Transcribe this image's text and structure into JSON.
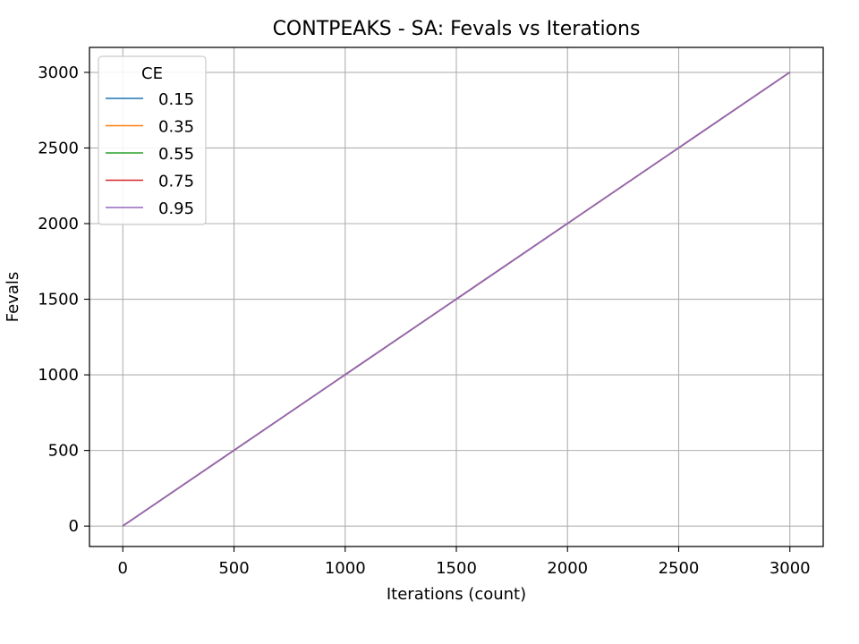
{
  "chart_data": {
    "type": "line",
    "title": "CONTPEAKS - SA: Fevals vs Iterations",
    "xlabel": "Iterations (count)",
    "ylabel": "Fevals",
    "xlim": [
      -150,
      3150
    ],
    "ylim": [
      -135,
      3165
    ],
    "xticks": [
      0,
      500,
      1000,
      1500,
      2000,
      2500,
      3000
    ],
    "yticks": [
      0,
      500,
      1000,
      1500,
      2000,
      2500,
      3000
    ],
    "grid": true,
    "legend": {
      "title": "CE",
      "placement": "top-left"
    },
    "series": [
      {
        "name": "0.15",
        "color": "#1f77b4",
        "x": [
          0,
          3000
        ],
        "y": [
          1,
          3001
        ]
      },
      {
        "name": "0.35",
        "color": "#ff7f0e",
        "x": [
          0,
          3000
        ],
        "y": [
          1,
          3001
        ]
      },
      {
        "name": "0.55",
        "color": "#2ca02c",
        "x": [
          0,
          3000
        ],
        "y": [
          1,
          3001
        ]
      },
      {
        "name": "0.75",
        "color": "#d62728",
        "x": [
          0,
          3000
        ],
        "y": [
          1,
          3001
        ]
      },
      {
        "name": "0.95",
        "color": "#9467bd",
        "x": [
          0,
          3000
        ],
        "y": [
          1,
          3001
        ]
      }
    ]
  }
}
